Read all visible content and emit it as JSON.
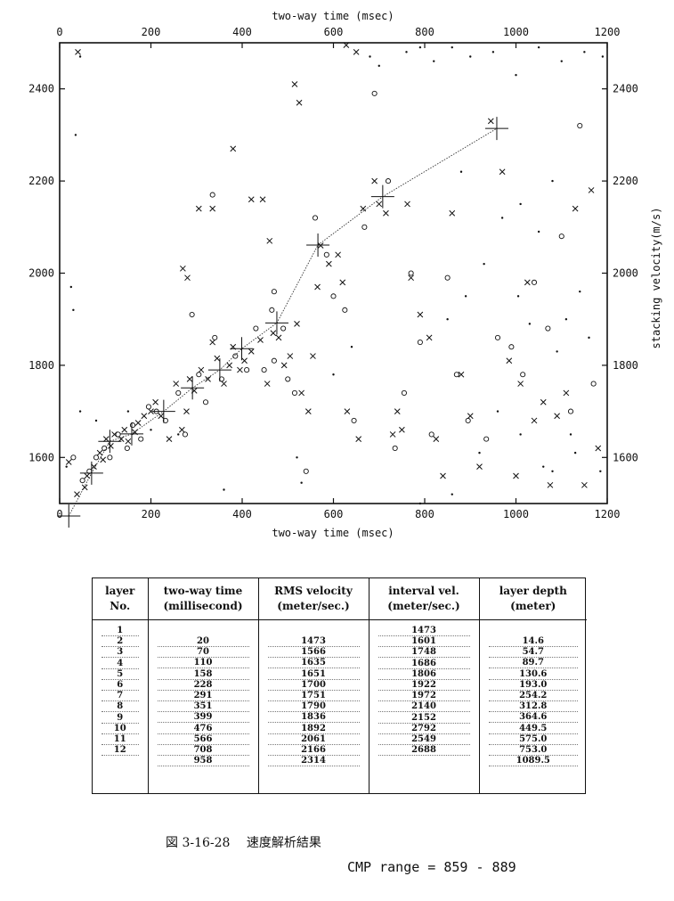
{
  "chart_data": {
    "type": "scatter",
    "title": "",
    "xlabel_top": "two-way time (msec)",
    "xlabel_bottom": "two-way time (msec)",
    "ylabel": "stacking velocity(m/s)",
    "xlim": [
      0,
      1200
    ],
    "ylim": [
      1500,
      2500
    ],
    "xticks": [
      "0",
      "200",
      "400",
      "600",
      "800",
      "1000",
      "1200"
    ],
    "xtick_values": [
      0,
      200,
      400,
      600,
      800,
      1000,
      1200
    ],
    "yticks": [
      "1600",
      "1800",
      "2000",
      "2200",
      "2400"
    ],
    "ytick_values": [
      1600,
      1800,
      2000,
      2200,
      2400
    ],
    "grid": false,
    "picks_line": {
      "name": "",
      "x": [
        20,
        70,
        110,
        158,
        228,
        291,
        351,
        399,
        476,
        566,
        708,
        958
      ],
      "y": [
        1473,
        1566,
        1635,
        1651,
        1700,
        1751,
        1790,
        1836,
        1892,
        2061,
        2166,
        2314
      ]
    },
    "marker_series": [
      {
        "marker": "x",
        "points": [
          [
            20,
            1590
          ],
          [
            38,
            1520
          ],
          [
            55,
            1535
          ],
          [
            60,
            1560
          ],
          [
            75,
            1580
          ],
          [
            88,
            1610
          ],
          [
            95,
            1595
          ],
          [
            102,
            1640
          ],
          [
            112,
            1625
          ],
          [
            120,
            1650
          ],
          [
            135,
            1640
          ],
          [
            142,
            1660
          ],
          [
            150,
            1635
          ],
          [
            165,
            1655
          ],
          [
            172,
            1675
          ],
          [
            185,
            1690
          ],
          [
            200,
            1700
          ],
          [
            210,
            1720
          ],
          [
            222,
            1690
          ],
          [
            240,
            1640
          ],
          [
            255,
            1760
          ],
          [
            268,
            1660
          ],
          [
            278,
            1700
          ],
          [
            285,
            1770
          ],
          [
            295,
            1745
          ],
          [
            310,
            1790
          ],
          [
            325,
            1770
          ],
          [
            335,
            1850
          ],
          [
            345,
            1815
          ],
          [
            360,
            1760
          ],
          [
            372,
            1800
          ],
          [
            380,
            1840
          ],
          [
            395,
            1790
          ],
          [
            405,
            1810
          ],
          [
            420,
            1830
          ],
          [
            440,
            1855
          ],
          [
            455,
            1760
          ],
          [
            468,
            1870
          ],
          [
            480,
            1860
          ],
          [
            492,
            1800
          ],
          [
            505,
            1820
          ],
          [
            520,
            1890
          ],
          [
            530,
            1740
          ],
          [
            545,
            1700
          ],
          [
            555,
            1820
          ],
          [
            565,
            1970
          ],
          [
            572,
            2060
          ],
          [
            590,
            2020
          ],
          [
            610,
            2040
          ],
          [
            620,
            1980
          ],
          [
            630,
            1700
          ],
          [
            655,
            1640
          ],
          [
            665,
            2140
          ],
          [
            690,
            2200
          ],
          [
            700,
            2150
          ],
          [
            715,
            2130
          ],
          [
            730,
            1650
          ],
          [
            740,
            1700
          ],
          [
            750,
            1660
          ],
          [
            762,
            2150
          ],
          [
            770,
            1990
          ],
          [
            790,
            1910
          ],
          [
            810,
            1860
          ],
          [
            825,
            1640
          ],
          [
            840,
            1560
          ],
          [
            860,
            2130
          ],
          [
            880,
            1780
          ],
          [
            900,
            1690
          ],
          [
            920,
            1580
          ],
          [
            945,
            2330
          ],
          [
            970,
            2220
          ],
          [
            985,
            1810
          ],
          [
            1000,
            1560
          ],
          [
            1010,
            1760
          ],
          [
            1025,
            1980
          ],
          [
            1040,
            1680
          ],
          [
            1060,
            1720
          ],
          [
            1075,
            1540
          ],
          [
            1090,
            1690
          ],
          [
            1110,
            1740
          ],
          [
            1130,
            2140
          ],
          [
            1150,
            1540
          ],
          [
            1165,
            2180
          ],
          [
            1180,
            1620
          ],
          [
            40,
            2480
          ],
          [
            515,
            2410
          ],
          [
            525,
            2370
          ],
          [
            628,
            2495
          ],
          [
            650,
            2480
          ],
          [
            380,
            2270
          ],
          [
            420,
            2160
          ],
          [
            305,
            2140
          ],
          [
            335,
            2140
          ],
          [
            445,
            2160
          ],
          [
            460,
            2070
          ],
          [
            270,
            2010
          ],
          [
            280,
            1990
          ]
        ]
      },
      {
        "marker": "o",
        "points": [
          [
            30,
            1600
          ],
          [
            50,
            1550
          ],
          [
            65,
            1570
          ],
          [
            80,
            1600
          ],
          [
            98,
            1620
          ],
          [
            110,
            1600
          ],
          [
            128,
            1650
          ],
          [
            148,
            1620
          ],
          [
            160,
            1670
          ],
          [
            178,
            1640
          ],
          [
            195,
            1710
          ],
          [
            212,
            1700
          ],
          [
            232,
            1680
          ],
          [
            260,
            1740
          ],
          [
            275,
            1650
          ],
          [
            290,
            1910
          ],
          [
            305,
            1780
          ],
          [
            320,
            1720
          ],
          [
            340,
            1860
          ],
          [
            355,
            1770
          ],
          [
            385,
            1820
          ],
          [
            410,
            1790
          ],
          [
            430,
            1880
          ],
          [
            448,
            1790
          ],
          [
            470,
            1810
          ],
          [
            490,
            1880
          ],
          [
            500,
            1770
          ],
          [
            515,
            1740
          ],
          [
            540,
            1570
          ],
          [
            560,
            2120
          ],
          [
            585,
            2040
          ],
          [
            600,
            1950
          ],
          [
            625,
            1920
          ],
          [
            645,
            1680
          ],
          [
            668,
            2100
          ],
          [
            720,
            2200
          ],
          [
            735,
            1620
          ],
          [
            755,
            1740
          ],
          [
            770,
            2000
          ],
          [
            790,
            1850
          ],
          [
            815,
            1650
          ],
          [
            850,
            1990
          ],
          [
            870,
            1780
          ],
          [
            895,
            1680
          ],
          [
            935,
            1640
          ],
          [
            960,
            1860
          ],
          [
            990,
            1840
          ],
          [
            1015,
            1780
          ],
          [
            1040,
            1980
          ],
          [
            1070,
            1880
          ],
          [
            1100,
            2080
          ],
          [
            1120,
            1700
          ],
          [
            1140,
            2320
          ],
          [
            1170,
            1760
          ],
          [
            335,
            2170
          ],
          [
            465,
            1920
          ],
          [
            470,
            1960
          ],
          [
            690,
            2390
          ]
        ]
      },
      {
        "marker": "dot",
        "points": [
          [
            15,
            1580
          ],
          [
            25,
            1970
          ],
          [
            35,
            2300
          ],
          [
            45,
            2470
          ],
          [
            30,
            1920
          ],
          [
            45,
            1700
          ],
          [
            80,
            1680
          ],
          [
            150,
            1700
          ],
          [
            200,
            1660
          ],
          [
            260,
            1650
          ],
          [
            360,
            1530
          ],
          [
            520,
            1600
          ],
          [
            530,
            1545
          ],
          [
            600,
            1780
          ],
          [
            640,
            1840
          ],
          [
            680,
            2470
          ],
          [
            700,
            2450
          ],
          [
            760,
            2480
          ],
          [
            790,
            2490
          ],
          [
            820,
            2460
          ],
          [
            860,
            2490
          ],
          [
            900,
            2470
          ],
          [
            950,
            2480
          ],
          [
            1000,
            2430
          ],
          [
            1050,
            2490
          ],
          [
            1100,
            2460
          ],
          [
            1150,
            2480
          ],
          [
            1190,
            2470
          ],
          [
            790,
            1500
          ],
          [
            860,
            1520
          ],
          [
            920,
            1610
          ],
          [
            960,
            1700
          ],
          [
            1010,
            1650
          ],
          [
            1030,
            1890
          ],
          [
            1060,
            1580
          ],
          [
            1090,
            1830
          ],
          [
            1120,
            1650
          ],
          [
            1160,
            1860
          ],
          [
            1185,
            1570
          ],
          [
            1050,
            2090
          ],
          [
            1080,
            2200
          ],
          [
            1010,
            2150
          ],
          [
            970,
            2120
          ],
          [
            930,
            2020
          ],
          [
            890,
            1950
          ],
          [
            850,
            1900
          ],
          [
            880,
            2220
          ],
          [
            1140,
            1960
          ],
          [
            1110,
            1900
          ],
          [
            1005,
            1950
          ],
          [
            1080,
            1570
          ],
          [
            1130,
            1610
          ]
        ]
      }
    ]
  },
  "table": {
    "headers": [
      [
        "layer",
        "No."
      ],
      [
        "two-way time",
        "(millisecond)"
      ],
      [
        "RMS velocity",
        "(meter/sec.)"
      ],
      [
        "interval vel.",
        "(meter/sec.)"
      ],
      [
        "layer depth",
        "(meter)"
      ]
    ],
    "layer_no": [
      "1",
      "2",
      "3",
      "4",
      "5",
      "6",
      "7",
      "8",
      "9",
      "10",
      "11",
      "12"
    ],
    "two_way_time": [
      "20",
      "70",
      "110",
      "158",
      "228",
      "291",
      "351",
      "399",
      "476",
      "566",
      "708",
      "958"
    ],
    "rms_velocity": [
      "1473",
      "1566",
      "1635",
      "1651",
      "1700",
      "1751",
      "1790",
      "1836",
      "1892",
      "2061",
      "2166",
      "2314"
    ],
    "interval_vel": [
      "1473",
      "1601",
      "1748",
      "1686",
      "1806",
      "1922",
      "1972",
      "2140",
      "2152",
      "2792",
      "2549",
      "2688"
    ],
    "layer_depth": [
      "14.6",
      "54.7",
      "89.7",
      "130.6",
      "193.0",
      "254.2",
      "312.8",
      "364.6",
      "449.5",
      "575.0",
      "753.0",
      "1089.5"
    ]
  },
  "caption": "図 3-16-28　 速度解析結果",
  "cmp_range": "CMP range = 859 - 889"
}
